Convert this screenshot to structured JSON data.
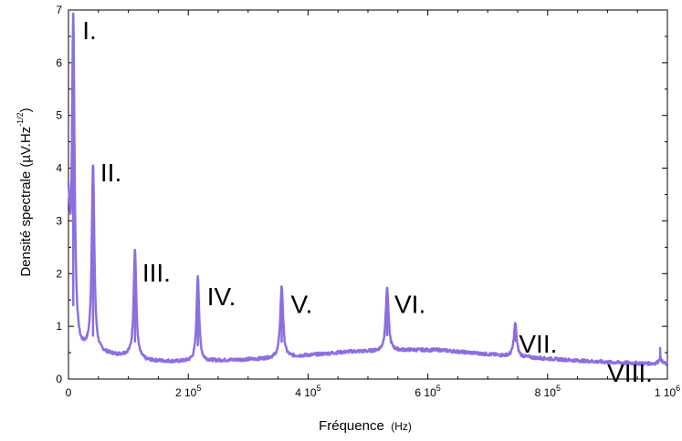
{
  "chart_data": {
    "type": "line",
    "xlabel": "Fréquence",
    "xlabel_unit": "(Hz)",
    "ylabel": "Densité spectrale (µV.Hz",
    "ylabel_exp": "-1/2",
    "ylabel_close": ")",
    "xlim": [
      0,
      1000000
    ],
    "ylim": [
      0,
      7
    ],
    "grid": false,
    "line_color": "#8b6fe0",
    "x_ticks": [
      {
        "value": 0,
        "label": "0",
        "exp": ""
      },
      {
        "value": 200000,
        "label": "2 10",
        "exp": "5"
      },
      {
        "value": 400000,
        "label": "4 10",
        "exp": "5"
      },
      {
        "value": 600000,
        "label": "6 10",
        "exp": "5"
      },
      {
        "value": 800000,
        "label": "8 10",
        "exp": "5"
      },
      {
        "value": 1000000,
        "label": "1 10",
        "exp": "6"
      }
    ],
    "y_ticks": [
      0,
      1,
      2,
      3,
      4,
      5,
      6,
      7
    ],
    "peaks": [
      {
        "label": "I.",
        "x": 8000,
        "y": 6.9,
        "width": 2500
      },
      {
        "label": "II.",
        "x": 41000,
        "y": 4.05,
        "width": 2500
      },
      {
        "label": "III.",
        "x": 111000,
        "y": 2.45,
        "width": 2500
      },
      {
        "label": "IV.",
        "x": 216000,
        "y": 1.95,
        "width": 2500
      },
      {
        "label": "V.",
        "x": 356000,
        "y": 1.75,
        "width": 2800
      },
      {
        "label": "VI.",
        "x": 532000,
        "y": 1.72,
        "width": 2800
      },
      {
        "label": "VII.",
        "x": 746000,
        "y": 1.05,
        "width": 2800
      },
      {
        "label": "VIII.",
        "x": 988000,
        "y": 0.4,
        "width": 3000
      }
    ],
    "baseline": [
      [
        0,
        3.2
      ],
      [
        2000,
        2.5
      ],
      [
        4000,
        1.5
      ],
      [
        10000,
        0.9
      ],
      [
        15000,
        0.65
      ],
      [
        20000,
        0.55
      ],
      [
        30000,
        0.55
      ],
      [
        50000,
        0.5
      ],
      [
        80000,
        0.45
      ],
      [
        100000,
        0.45
      ],
      [
        130000,
        0.35
      ],
      [
        180000,
        0.33
      ],
      [
        250000,
        0.35
      ],
      [
        320000,
        0.38
      ],
      [
        370000,
        0.42
      ],
      [
        420000,
        0.47
      ],
      [
        470000,
        0.52
      ],
      [
        520000,
        0.53
      ],
      [
        570000,
        0.55
      ],
      [
        620000,
        0.55
      ],
      [
        670000,
        0.5
      ],
      [
        720000,
        0.45
      ],
      [
        780000,
        0.4
      ],
      [
        850000,
        0.35
      ],
      [
        900000,
        0.32
      ],
      [
        950000,
        0.3
      ],
      [
        1000000,
        0.28
      ]
    ]
  }
}
